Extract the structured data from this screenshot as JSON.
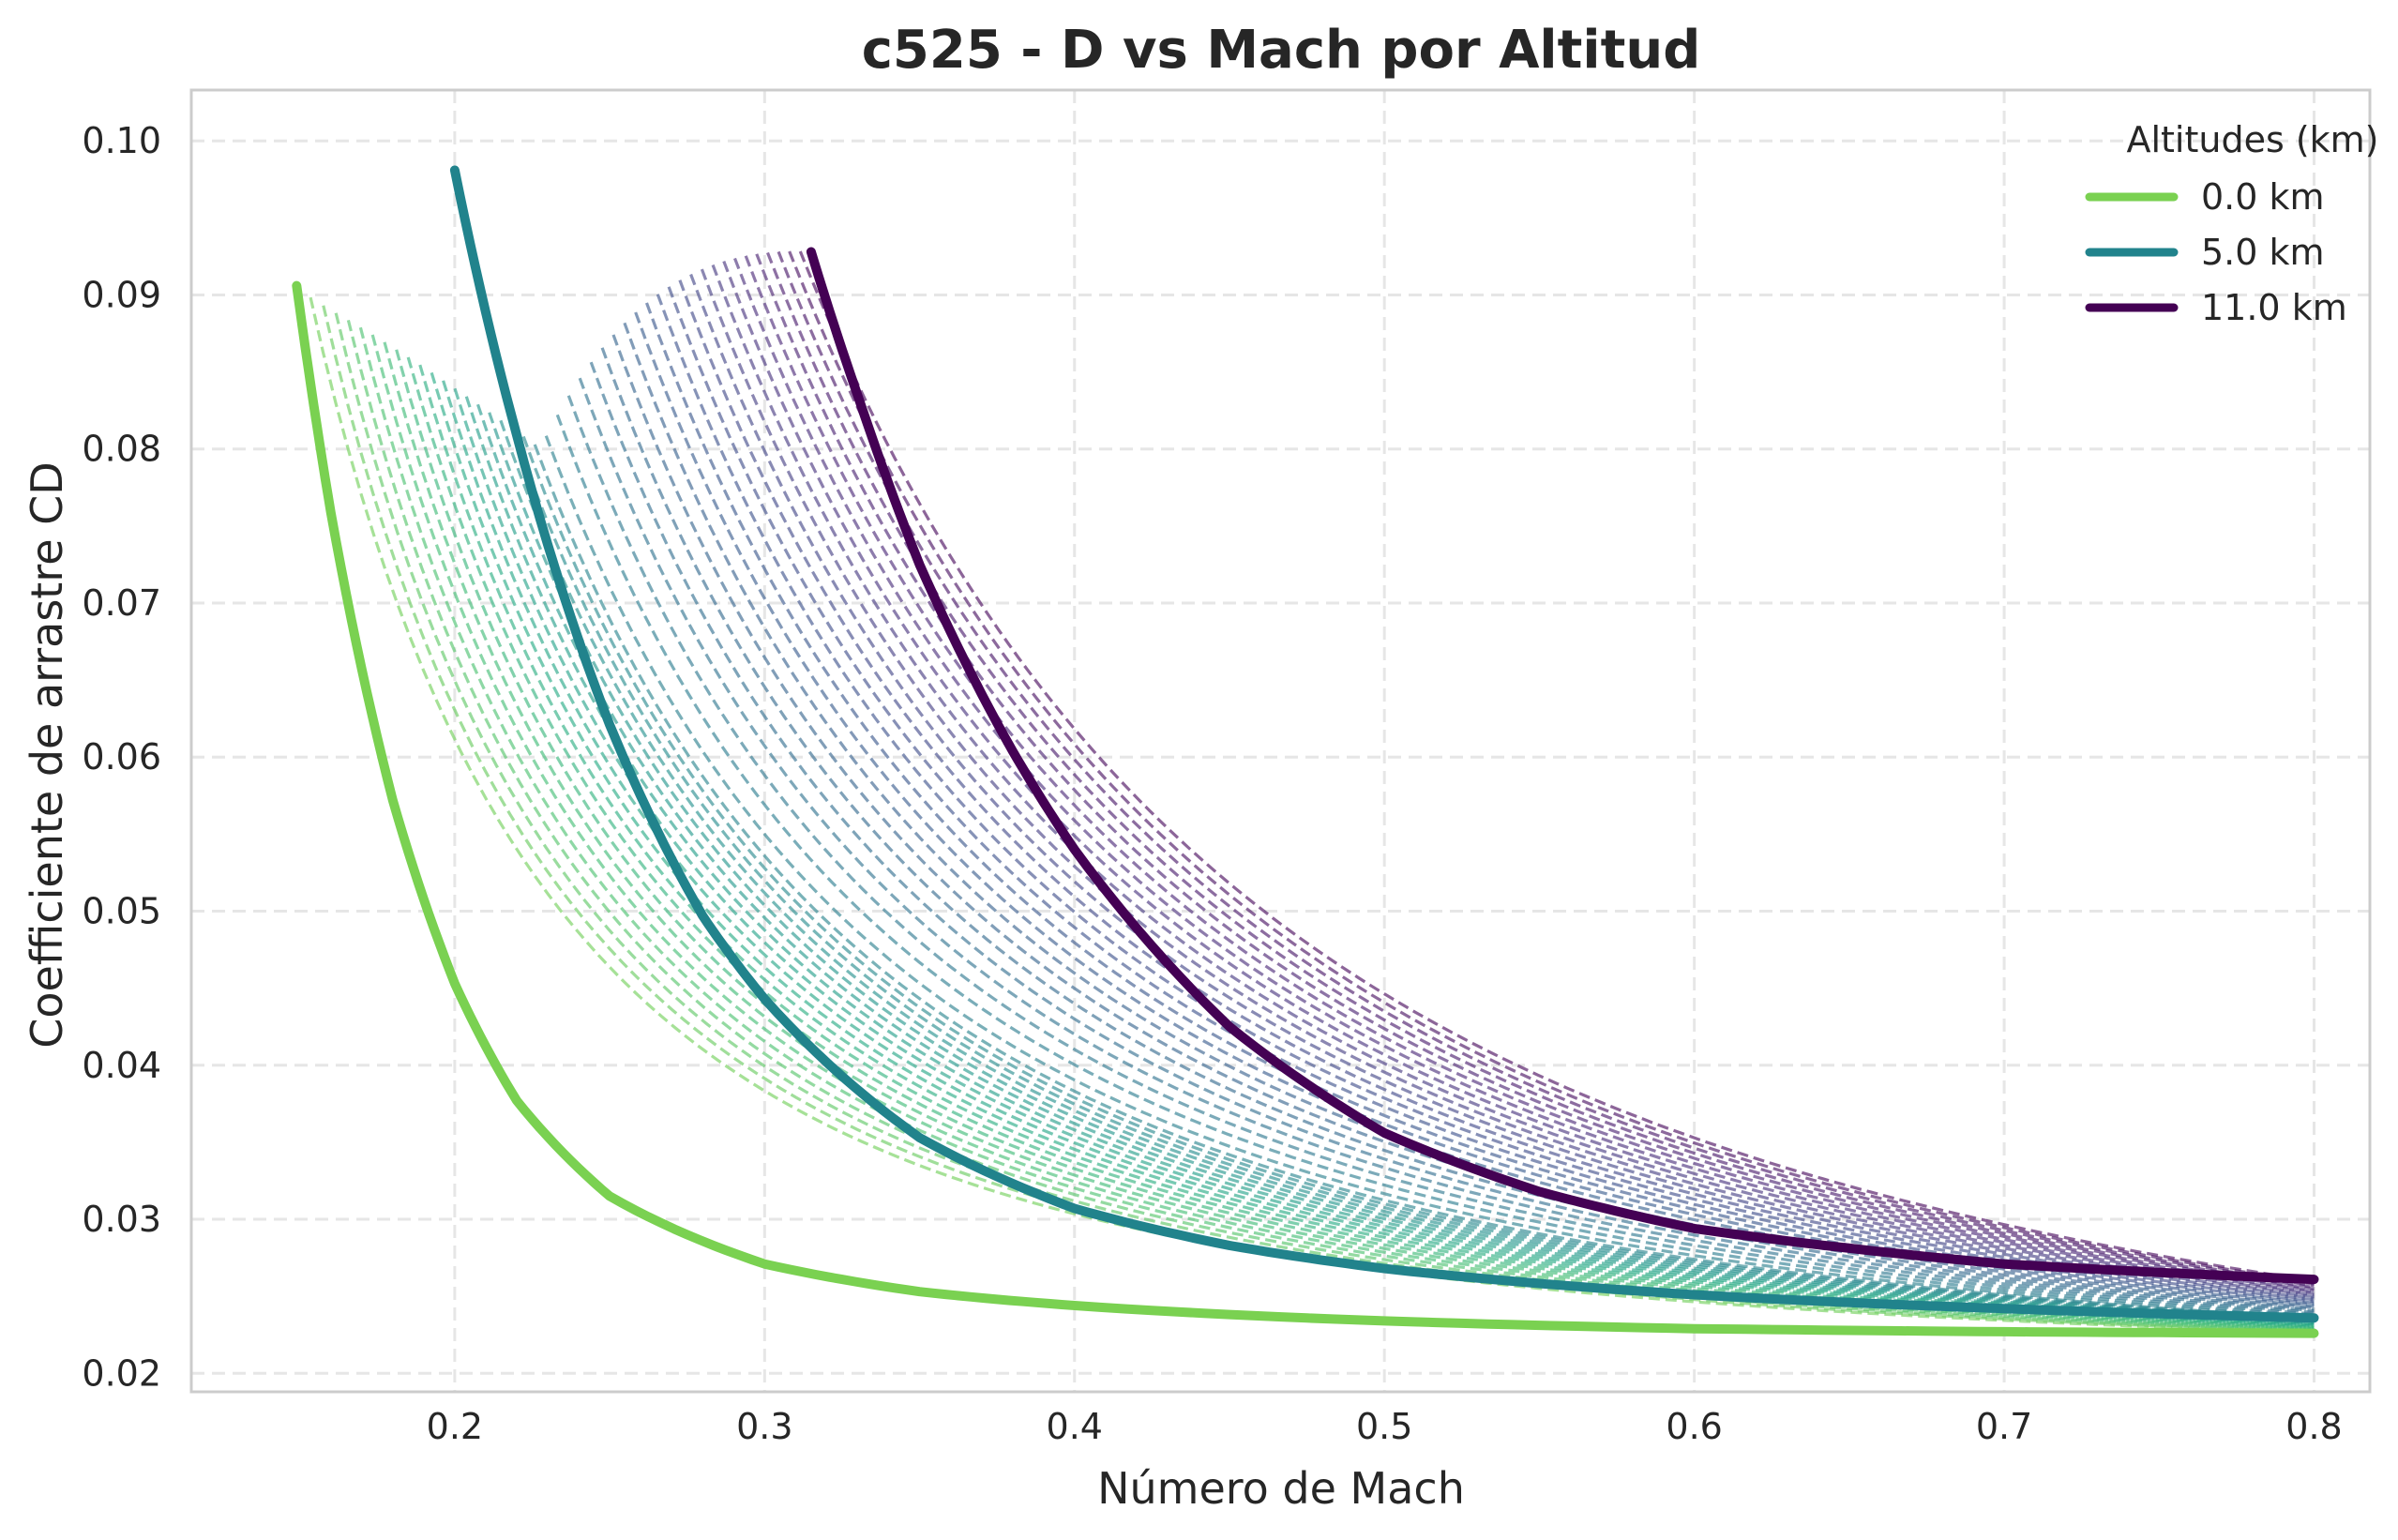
{
  "chart_data": {
    "type": "line",
    "title": "c525 - D vs Mach por Altitud",
    "xlabel": "Número de Mach",
    "ylabel": "Coefficiente de arrastre CD",
    "xlim": [
      0.115,
      0.818
    ],
    "ylim": [
      0.0188,
      0.1033
    ],
    "x_ticks": [
      0.2,
      0.3,
      0.4,
      0.5,
      0.6,
      0.7,
      0.8
    ],
    "x_tick_labels": [
      "0.2",
      "0.3",
      "0.4",
      "0.5",
      "0.6",
      "0.7",
      "0.8"
    ],
    "y_ticks": [
      0.02,
      0.03,
      0.04,
      0.05,
      0.06,
      0.07,
      0.08,
      0.09,
      0.1
    ],
    "y_tick_labels": [
      "0.02",
      "0.03",
      "0.04",
      "0.05",
      "0.06",
      "0.07",
      "0.08",
      "0.09",
      "0.10"
    ],
    "grid": true,
    "grid_style": "dashed",
    "legend": {
      "title": "Altitudes (km)",
      "placement": "top-right"
    },
    "colormap": "viridis",
    "series": [
      {
        "name": "0.0 km",
        "style": "solid",
        "color": "#7ad151",
        "x": [
          0.149,
          0.16,
          0.18,
          0.2,
          0.22,
          0.25,
          0.3,
          0.35,
          0.4,
          0.5,
          0.6,
          0.7,
          0.8
        ],
        "y": [
          0.0906,
          0.0759,
          0.0572,
          0.0453,
          0.0377,
          0.0315,
          0.0271,
          0.0253,
          0.0244,
          0.0234,
          0.0229,
          0.0227,
          0.0226
        ]
      },
      {
        "name": "5.0 km",
        "style": "solid",
        "color": "#21838c",
        "x": [
          0.2,
          0.22,
          0.25,
          0.28,
          0.3,
          0.35,
          0.4,
          0.45,
          0.5,
          0.6,
          0.7,
          0.8
        ],
        "y": [
          0.0981,
          0.0809,
          0.0621,
          0.0497,
          0.0443,
          0.0353,
          0.0307,
          0.0283,
          0.0268,
          0.0251,
          0.0242,
          0.0236
        ]
      },
      {
        "name": "11.0 km",
        "style": "solid",
        "color": "#440154",
        "x": [
          0.315,
          0.33,
          0.35,
          0.38,
          0.4,
          0.45,
          0.5,
          0.55,
          0.6,
          0.7,
          0.8
        ],
        "y": [
          0.0928,
          0.0835,
          0.0725,
          0.0604,
          0.054,
          0.0425,
          0.0356,
          0.0318,
          0.0294,
          0.0271,
          0.0261
        ]
      }
    ],
    "intermediate_dashed_series": {
      "count": 44,
      "style": "dashed",
      "colormap_range": [
        "#a0da39",
        "#482475"
      ]
    }
  }
}
